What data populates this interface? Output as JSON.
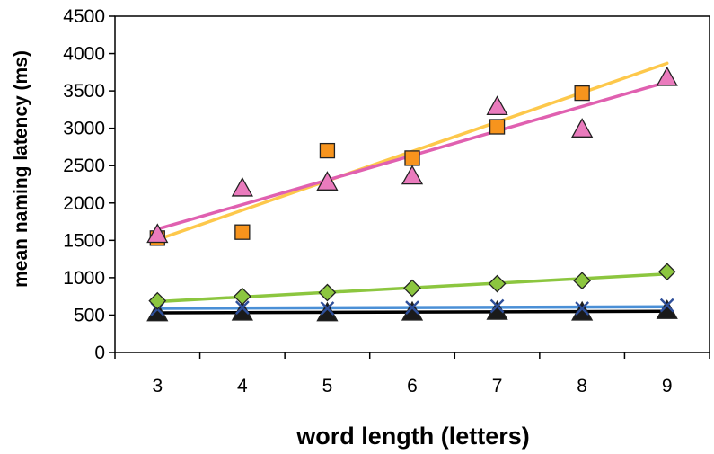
{
  "chart_data": {
    "type": "scatter",
    "xlabel": "word length (letters)",
    "ylabel": "mean naming latency (ms)",
    "xlim": [
      2.5,
      9.5
    ],
    "ylim": [
      0,
      4500
    ],
    "x_ticks": [
      3,
      4,
      5,
      6,
      7,
      8,
      9
    ],
    "y_ticks": [
      0,
      500,
      1000,
      1500,
      2000,
      2500,
      3000,
      3500,
      4000,
      4500
    ],
    "grid": false,
    "legend": "none",
    "series": [
      {
        "marker": "square",
        "color": "#f7941d",
        "x": [
          3,
          4,
          5,
          6,
          7,
          8
        ],
        "y": [
          1530,
          1610,
          2700,
          2600,
          3020,
          3470
        ],
        "trend": {
          "color": "#fdc84b",
          "from": [
            3,
            1510
          ],
          "to": [
            9,
            3870
          ]
        }
      },
      {
        "marker": "triangle",
        "color": "#ea7bbd",
        "x": [
          3,
          4,
          5,
          6,
          7,
          8,
          9
        ],
        "y": [
          1580,
          2200,
          2280,
          2360,
          3290,
          2990,
          3680
        ],
        "trend": {
          "color": "#e060b0",
          "from": [
            3,
            1650
          ],
          "to": [
            9,
            3620
          ]
        }
      },
      {
        "marker": "diamond",
        "color": "#8cc63f",
        "x": [
          3,
          4,
          5,
          6,
          7,
          8,
          9
        ],
        "y": [
          690,
          750,
          800,
          860,
          920,
          960,
          1080
        ],
        "trend": {
          "color": "#8cc63f",
          "from": [
            3,
            680
          ],
          "to": [
            9,
            1050
          ]
        }
      },
      {
        "marker": "cross",
        "color": "#2e4f9a",
        "x": [
          3,
          4,
          5,
          6,
          7,
          8,
          9
        ],
        "y": [
          580,
          600,
          590,
          600,
          620,
          590,
          630
        ],
        "trend": {
          "color": "#4a8fd6",
          "from": [
            3,
            590
          ],
          "to": [
            9,
            610
          ]
        }
      },
      {
        "marker": "triangle",
        "color": "#1a1a1a",
        "x": [
          3,
          4,
          5,
          6,
          7,
          8,
          9
        ],
        "y": [
          530,
          540,
          530,
          540,
          550,
          540,
          560
        ],
        "trend": {
          "color": "#000000",
          "from": [
            3,
            530
          ],
          "to": [
            9,
            550
          ]
        }
      }
    ]
  }
}
